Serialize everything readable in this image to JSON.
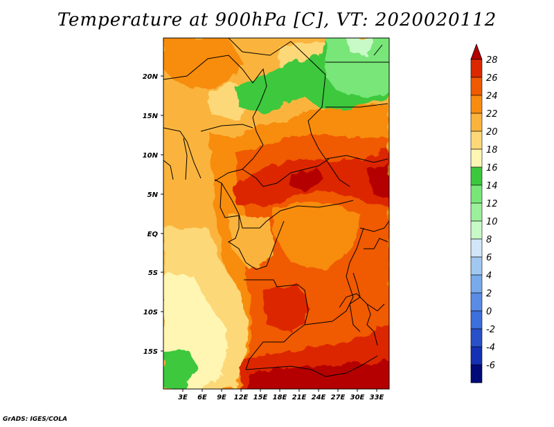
{
  "title": "Temperature at 900hPa [C], VT: 2020020112",
  "footer": "GrADS: IGES/COLA",
  "colors": {
    "c28": "#b40000",
    "c26": "#dc2800",
    "c24": "#f05a00",
    "c22": "#f88c10",
    "c20": "#fab43c",
    "c18": "#fcd878",
    "c16": "#fff6b4",
    "c14": "#3cc83c",
    "c12": "#78e678",
    "c10": "#c8fac8",
    "c8": "#d2e6fa",
    "c6": "#a0c8f0",
    "c4": "#78aaec",
    "c2": "#5a8ce6",
    "c0": "#3c6edc",
    "cm2": "#2850c8",
    "cm4": "#1430b4",
    "cm6": "#000a78"
  },
  "axes": {
    "lat_labels": [
      "20N",
      "15N",
      "10N",
      "5N",
      "EQ",
      "5S",
      "10S",
      "15S"
    ],
    "lon_labels": [
      "3E",
      "6E",
      "9E",
      "12E",
      "15E",
      "18E",
      "21E",
      "24E",
      "27E",
      "30E",
      "33E"
    ]
  },
  "colorbar": {
    "labels": [
      "28",
      "26",
      "24",
      "22",
      "20",
      "18",
      "16",
      "14",
      "12",
      "10",
      "8",
      "6",
      "4",
      "2",
      "0",
      "-2",
      "-4",
      "-6"
    ],
    "colors": [
      "#dc2800",
      "#f05a00",
      "#f88c10",
      "#fab43c",
      "#fcd878",
      "#fff6b4",
      "#3cc83c",
      "#78e678",
      "#9cf09c",
      "#c8fac8",
      "#d2e6fa",
      "#a0c8f0",
      "#78aaec",
      "#5a8ce6",
      "#3c6edc",
      "#2850c8",
      "#1430b4",
      "#000a78"
    ],
    "top_arrow_color": "#b40000",
    "bottom_arrow_color": "#d7d7f8"
  }
}
